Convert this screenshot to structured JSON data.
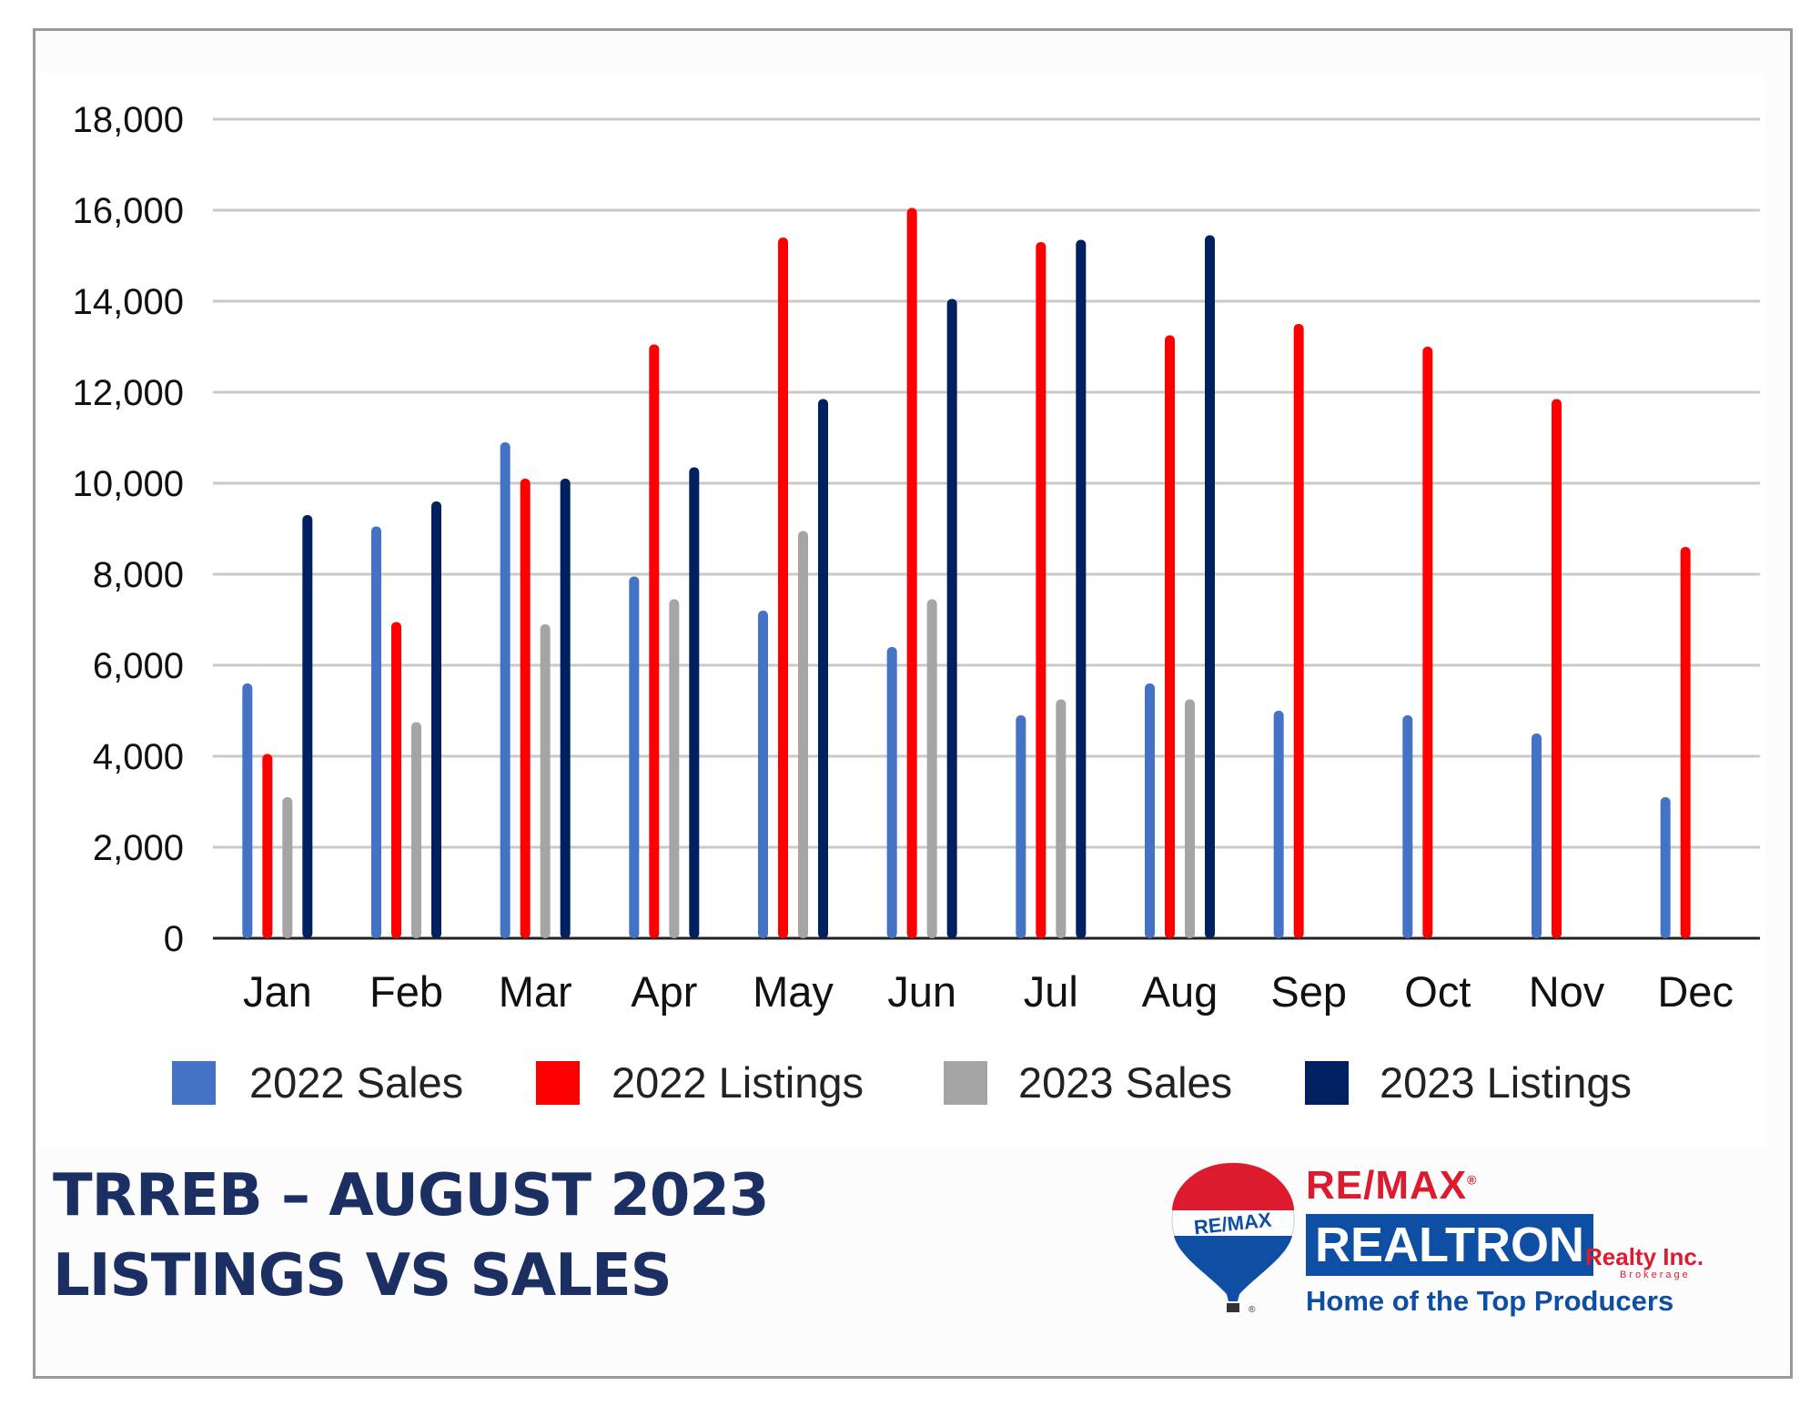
{
  "chart_data": {
    "type": "bar",
    "categories": [
      "Jan",
      "Feb",
      "Mar",
      "Apr",
      "May",
      "Jun",
      "Jul",
      "Aug",
      "Sep",
      "Oct",
      "Nov",
      "Dec"
    ],
    "series": [
      {
        "name": "2022 Sales",
        "color": "#4472c4",
        "values": [
          5600,
          9050,
          10900,
          7950,
          7200,
          6400,
          4900,
          5600,
          5000,
          4900,
          4500,
          3100
        ]
      },
      {
        "name": "2022 Listings",
        "color": "#ff0000",
        "values": [
          4050,
          6950,
          10100,
          13050,
          15400,
          16050,
          15300,
          13250,
          13500,
          13000,
          11850,
          8600
        ]
      },
      {
        "name": "2023 Sales",
        "color": "#a5a5a5",
        "values": [
          3100,
          4750,
          6900,
          7450,
          8950,
          7450,
          5250,
          5250,
          null,
          null,
          null,
          null
        ]
      },
      {
        "name": "2023 Listings",
        "color": "#002060",
        "values": [
          9300,
          9600,
          10100,
          10350,
          11850,
          14050,
          15350,
          15450,
          null,
          null,
          null,
          null
        ]
      }
    ],
    "ylim": [
      0,
      18000
    ],
    "yticks": [
      "0",
      "2,000",
      "4,000",
      "6,000",
      "8,000",
      "10,000",
      "12,000",
      "14,000",
      "16,000",
      "18,000"
    ],
    "ytick_values": [
      0,
      2000,
      4000,
      6000,
      8000,
      10000,
      12000,
      14000,
      16000,
      18000
    ],
    "grid": true,
    "legend_position": "bottom"
  },
  "title": {
    "line1": "TRREB – AUGUST 2023",
    "line2": "LISTINGS VS SALES"
  },
  "logo": {
    "brand": "RE/MAX",
    "balloon_text": "RE/MAX",
    "name": "REALTRON",
    "suffix": "Realty Inc.",
    "suffix2": "Brokerage",
    "tagline": "Home of the Top Producers",
    "registered": "®"
  }
}
